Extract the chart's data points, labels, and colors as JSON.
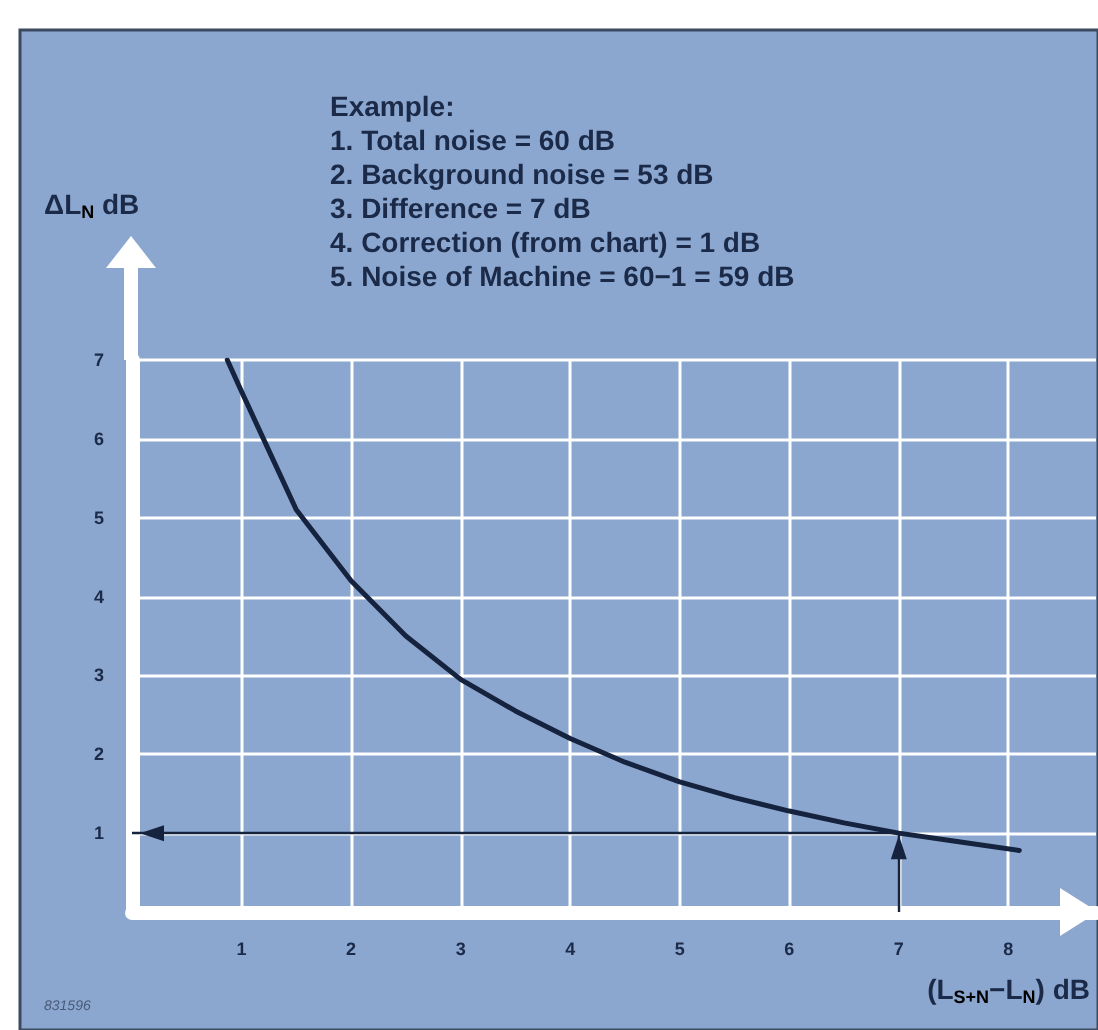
{
  "chart_data": {
    "type": "line",
    "xlabel": "(L$_{S+N}$−L$_{N}$) dB",
    "ylabel": "ΔL$_{N}$ dB",
    "annotations": [
      "Example:",
      "1. Total noise = 60 dB",
      "2. Background noise = 53 dB",
      "3. Difference = 7 dB",
      "4. Correction (from chart) = 1 dB",
      "5. Noise of Machine = 60−1 = 59 dB",
      "831596"
    ],
    "series": [
      {
        "color": "#16233f",
        "x": [
          0.87,
          1,
          1.5,
          2,
          2.5,
          3,
          3.5,
          4,
          4.5,
          5,
          5.5,
          6,
          6.5,
          7,
          7.5,
          8.1
        ],
        "values": [
          7,
          6.6,
          5.1,
          4.2,
          3.5,
          2.95,
          2.55,
          2.2,
          1.9,
          1.65,
          1.45,
          1.28,
          1.13,
          1.0,
          0.9,
          0.78
        ]
      }
    ],
    "ref_lines": [
      {
        "axis": "y",
        "value": 1,
        "color": "#16233f"
      },
      {
        "axis": "x",
        "value": 7,
        "color": "#16233f"
      }
    ],
    "xlim": [
      0,
      8.8
    ],
    "ylim": [
      0,
      7
    ],
    "xticks": [
      1,
      2,
      3,
      4,
      5,
      6,
      7,
      8
    ],
    "yticks": [
      1,
      2,
      3,
      4,
      5,
      6,
      7
    ],
    "grid": true,
    "marker": "none",
    "line_style": "solid"
  }
}
